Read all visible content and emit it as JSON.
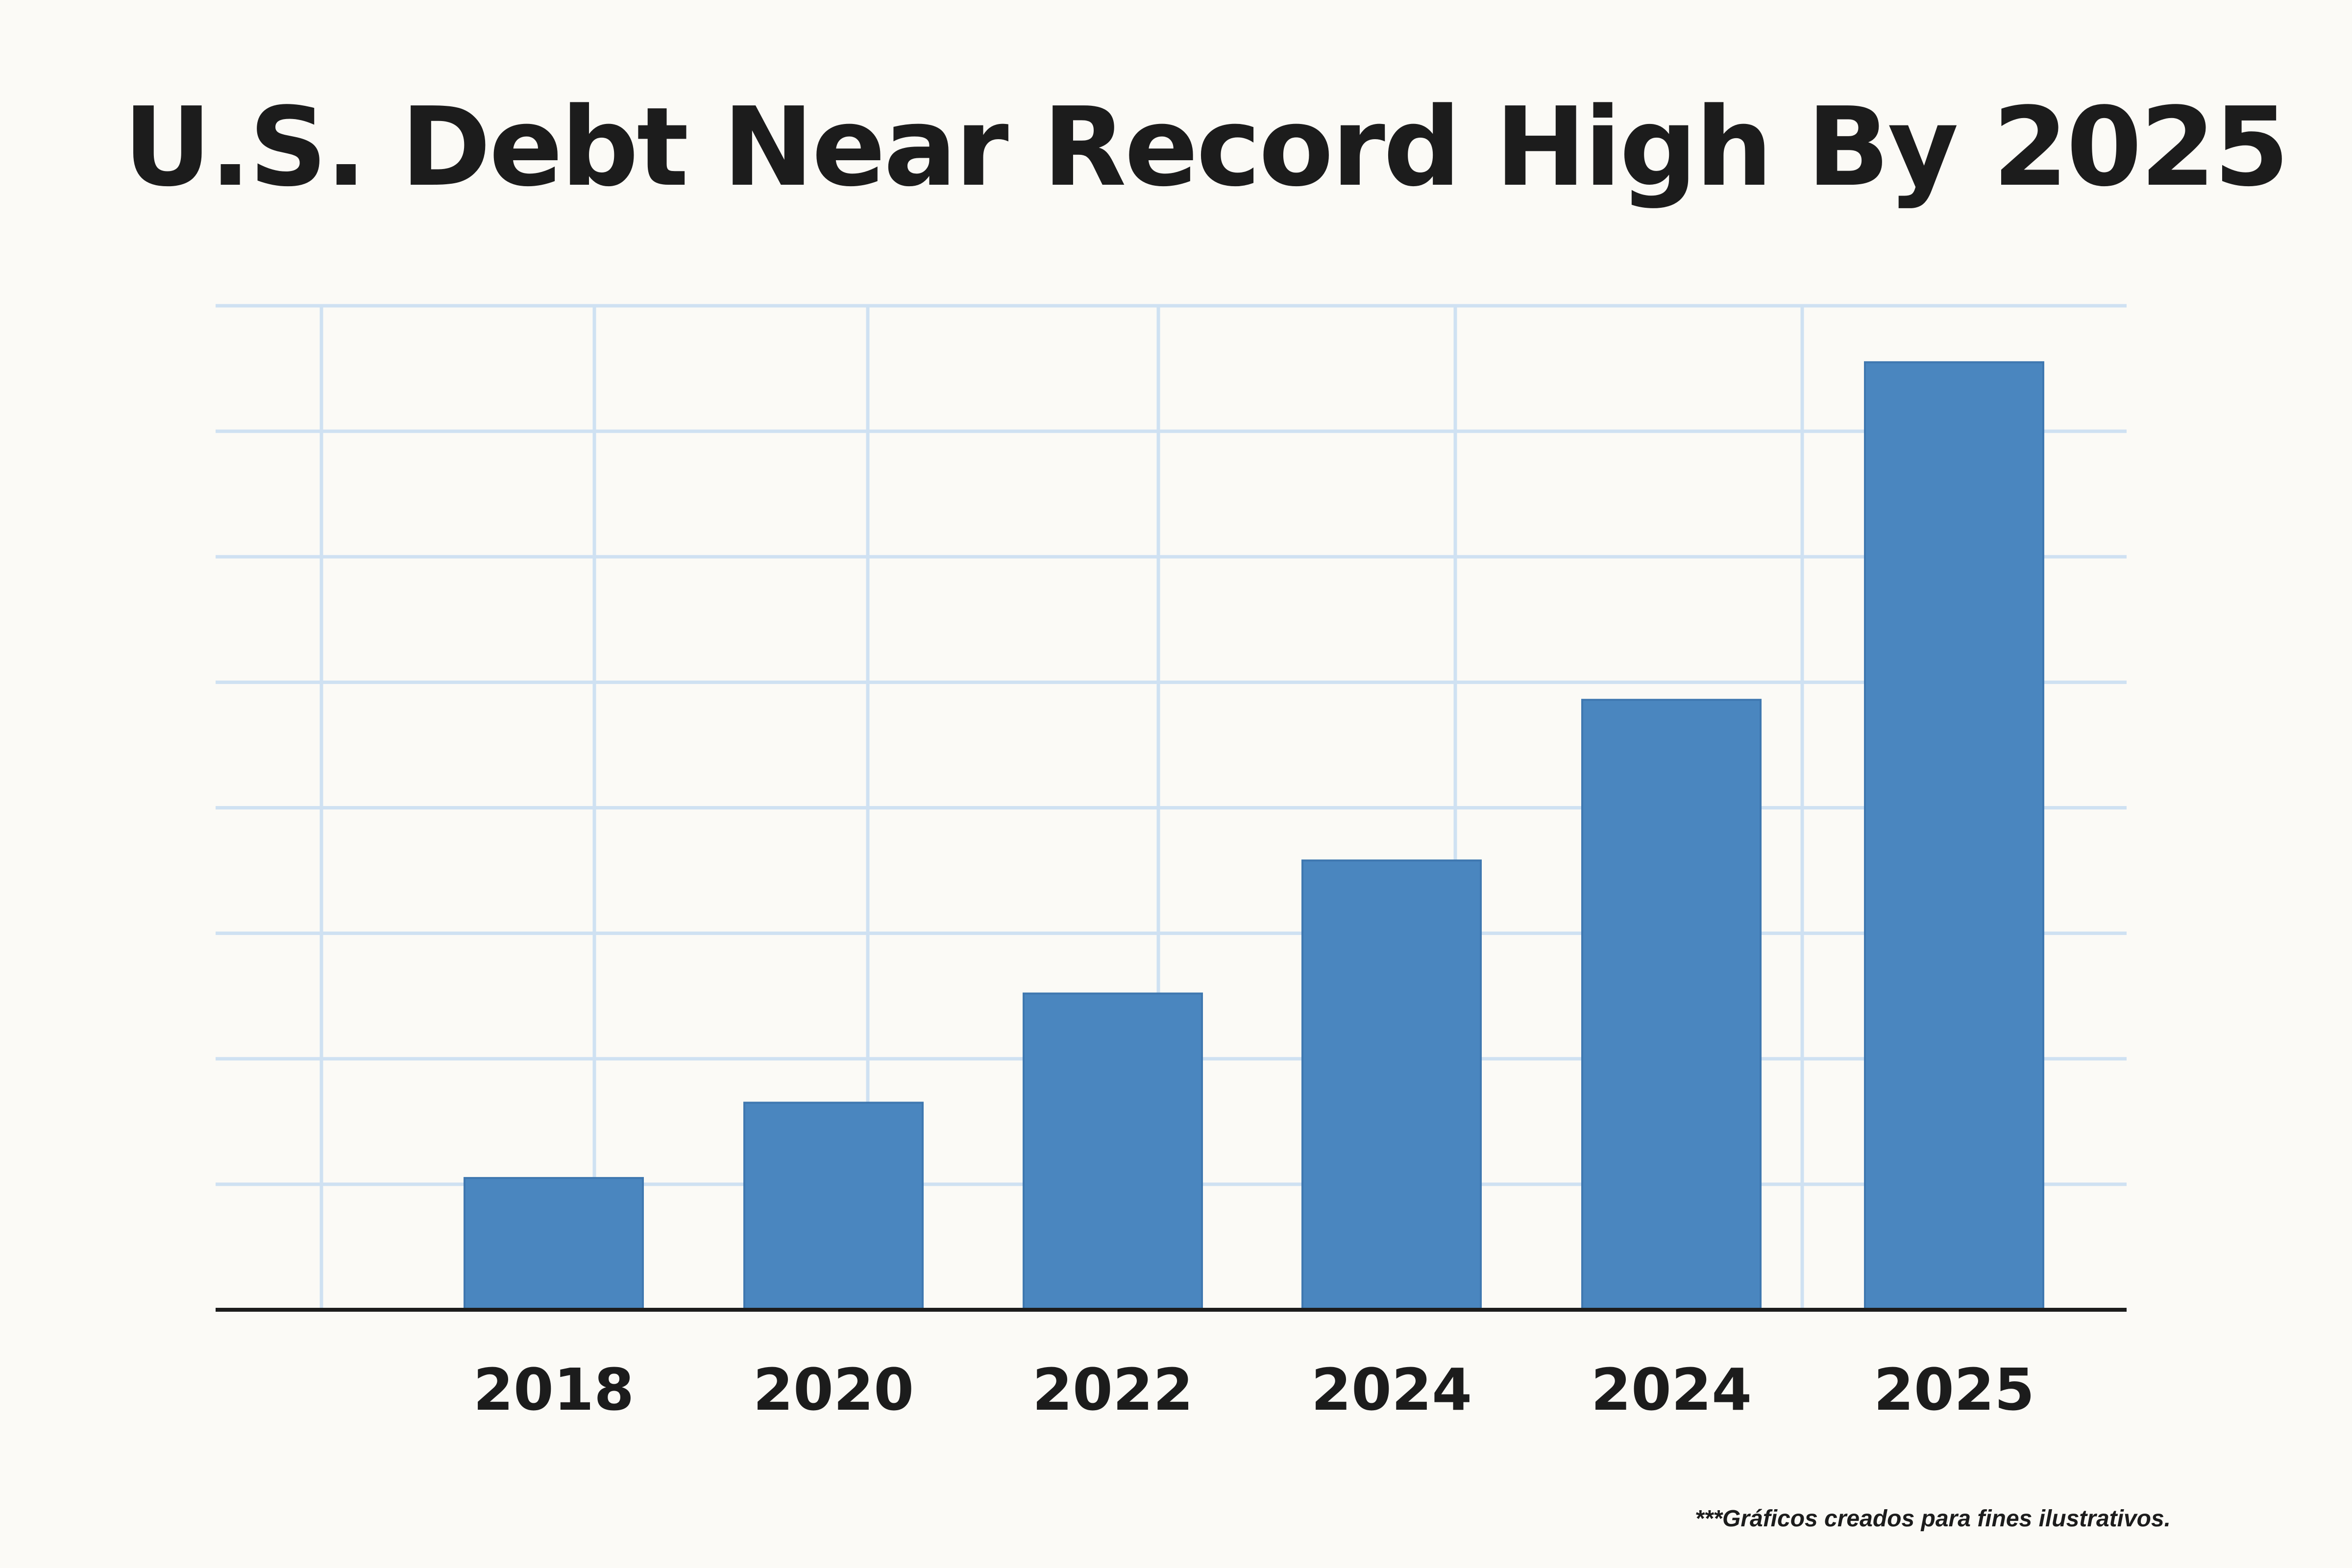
{
  "chart_data": {
    "type": "bar",
    "title": "U.S. Debt Near Record High By 2025",
    "xlabel": "",
    "ylabel": "",
    "categories": [
      "2018",
      "2020",
      "2022",
      "2024",
      "2024",
      "2025"
    ],
    "values": [
      1.05,
      1.65,
      2.52,
      3.58,
      4.86,
      7.55
    ],
    "ylim": [
      0,
      8
    ],
    "grid": true,
    "bar_color": "#4a86bf",
    "grid_color": "#cfe1f2",
    "axis_color": "#1c1c1c"
  },
  "footnote": "***Gráficos creados para fines ilustrativos."
}
